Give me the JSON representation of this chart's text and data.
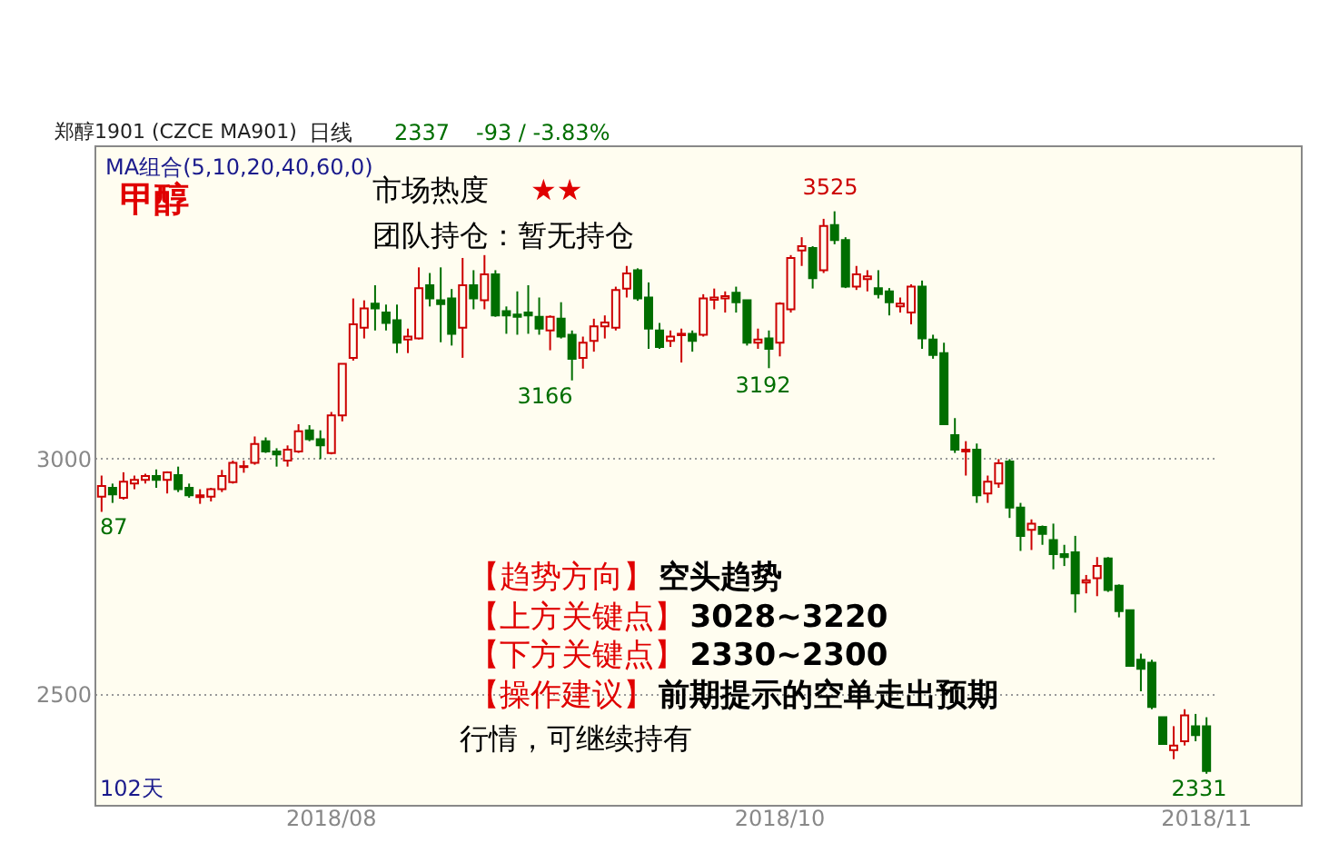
{
  "chart_data": {
    "type": "candlestick",
    "title": "甲醇",
    "categories": [
      null,
      null,
      null,
      null,
      null,
      null,
      null,
      null,
      null,
      null,
      null,
      null,
      null,
      null,
      null,
      null,
      null,
      null,
      null,
      null,
      null,
      "2018/08",
      null,
      null,
      null,
      null,
      null,
      null,
      null,
      null,
      null,
      null,
      null,
      null,
      null,
      null,
      null,
      null,
      null,
      null,
      null,
      null,
      null,
      null,
      null,
      null,
      null,
      null,
      null,
      null,
      null,
      null,
      null,
      null,
      null,
      null,
      null,
      null,
      null,
      null,
      null,
      null,
      "2018/10",
      null,
      null,
      null,
      null,
      null,
      null,
      null,
      null,
      null,
      null,
      null,
      null,
      null,
      null,
      null,
      null,
      null,
      null,
      null,
      null,
      null,
      null,
      null,
      null,
      null,
      null,
      null,
      null,
      null,
      null,
      null,
      null,
      null,
      null,
      null,
      null,
      null,
      null,
      "2018/11"
    ],
    "ohlc": [
      [
        2919,
        2964,
        2887,
        2942
      ],
      [
        2938,
        2947,
        2906,
        2924
      ],
      [
        2917,
        2971,
        2913,
        2951
      ],
      [
        2947,
        2964,
        2935,
        2955
      ],
      [
        2955,
        2968,
        2947,
        2963
      ],
      [
        2963,
        2977,
        2938,
        2955
      ],
      [
        2955,
        2973,
        2926,
        2971
      ],
      [
        2965,
        2983,
        2929,
        2935
      ],
      [
        2938,
        2947,
        2917,
        2922
      ],
      [
        2918,
        2935,
        2904,
        2922
      ],
      [
        2919,
        2938,
        2909,
        2935
      ],
      [
        2935,
        2976,
        2929,
        2963
      ],
      [
        2950,
        2996,
        2947,
        2991
      ],
      [
        2982,
        2996,
        2970,
        2984
      ],
      [
        2991,
        3047,
        2987,
        3031
      ],
      [
        3037,
        3045,
        3012,
        3015
      ],
      [
        3015,
        3022,
        2983,
        3009
      ],
      [
        2996,
        3028,
        2983,
        3019
      ],
      [
        3015,
        3073,
        3012,
        3058
      ],
      [
        3060,
        3071,
        3037,
        3041
      ],
      [
        3041,
        3060,
        2999,
        3028
      ],
      [
        3012,
        3099,
        3009,
        3092
      ],
      [
        3092,
        3201,
        3079,
        3201
      ],
      [
        3214,
        3340,
        3208,
        3285
      ],
      [
        3278,
        3336,
        3255,
        3319
      ],
      [
        3329,
        3368,
        3272,
        3319
      ],
      [
        3310,
        3327,
        3272,
        3288
      ],
      [
        3294,
        3327,
        3224,
        3246
      ],
      [
        3253,
        3276,
        3224,
        3259
      ],
      [
        3255,
        3406,
        3253,
        3362
      ],
      [
        3368,
        3394,
        3323,
        3340
      ],
      [
        3336,
        3406,
        3247,
        3328
      ],
      [
        3340,
        3360,
        3240,
        3265
      ],
      [
        3278,
        3426,
        3214,
        3368
      ],
      [
        3368,
        3400,
        3317,
        3340
      ],
      [
        3336,
        3432,
        3317,
        3391
      ],
      [
        3391,
        3400,
        3301,
        3304
      ],
      [
        3313,
        3323,
        3265,
        3304
      ],
      [
        3306,
        3355,
        3263,
        3301
      ],
      [
        3310,
        3368,
        3265,
        3304
      ],
      [
        3301,
        3342,
        3263,
        3276
      ],
      [
        3272,
        3304,
        3230,
        3301
      ],
      [
        3297,
        3332,
        3255,
        3259
      ],
      [
        3263,
        3272,
        3166,
        3212
      ],
      [
        3214,
        3259,
        3191,
        3246
      ],
      [
        3250,
        3297,
        3227,
        3281
      ],
      [
        3281,
        3304,
        3255,
        3289
      ],
      [
        3278,
        3365,
        3272,
        3358
      ],
      [
        3361,
        3409,
        3342,
        3393
      ],
      [
        3400,
        3404,
        3335,
        3340
      ],
      [
        3342,
        3374,
        3233,
        3276
      ],
      [
        3272,
        3288,
        3233,
        3237
      ],
      [
        3250,
        3272,
        3237,
        3259
      ],
      [
        3262,
        3276,
        3204,
        3265
      ],
      [
        3265,
        3272,
        3227,
        3250
      ],
      [
        3263,
        3349,
        3259,
        3340
      ],
      [
        3337,
        3361,
        3317,
        3342
      ],
      [
        3340,
        3355,
        3310,
        3345
      ],
      [
        3352,
        3365,
        3310,
        3332
      ],
      [
        3336,
        3336,
        3240,
        3246
      ],
      [
        3246,
        3276,
        3233,
        3253
      ],
      [
        3255,
        3272,
        3192,
        3233
      ],
      [
        3246,
        3332,
        3217,
        3329
      ],
      [
        3317,
        3432,
        3310,
        3426
      ],
      [
        3442,
        3470,
        3409,
        3451
      ],
      [
        3447,
        3451,
        3361,
        3383
      ],
      [
        3400,
        3509,
        3394,
        3494
      ],
      [
        3496,
        3525,
        3455,
        3464
      ],
      [
        3464,
        3470,
        3362,
        3365
      ],
      [
        3365,
        3409,
        3358,
        3391
      ],
      [
        3381,
        3400,
        3355,
        3387
      ],
      [
        3362,
        3400,
        3340,
        3349
      ],
      [
        3355,
        3362,
        3304,
        3332
      ],
      [
        3323,
        3342,
        3310,
        3329
      ],
      [
        3310,
        3370,
        3285,
        3365
      ],
      [
        3365,
        3378,
        3233,
        3255
      ],
      [
        3253,
        3263,
        3212,
        3220
      ],
      [
        3224,
        3246,
        3073,
        3073
      ],
      [
        3050,
        3086,
        3012,
        3019
      ],
      [
        3015,
        3037,
        2964,
        3019
      ],
      [
        3019,
        3032,
        2906,
        2922
      ],
      [
        2926,
        2964,
        2906,
        2951
      ],
      [
        2947,
        2999,
        2938,
        2990
      ],
      [
        2994,
        2999,
        2874,
        2896
      ],
      [
        2896,
        2906,
        2804,
        2836
      ],
      [
        2849,
        2871,
        2806,
        2862
      ],
      [
        2855,
        2858,
        2817,
        2840
      ],
      [
        2827,
        2862,
        2765,
        2797
      ],
      [
        2797,
        2817,
        2772,
        2791
      ],
      [
        2801,
        2836,
        2673,
        2714
      ],
      [
        2737,
        2753,
        2714,
        2742
      ],
      [
        2746,
        2791,
        2708,
        2772
      ],
      [
        2788,
        2791,
        2717,
        2721
      ],
      [
        2730,
        2733,
        2663,
        2676
      ],
      [
        2678,
        2678,
        2558,
        2560
      ],
      [
        2573,
        2586,
        2506,
        2554
      ],
      [
        2567,
        2573,
        2468,
        2473
      ],
      [
        2451,
        2451,
        2394,
        2394
      ],
      [
        2381,
        2432,
        2362,
        2391
      ],
      [
        2400,
        2468,
        2391,
        2455
      ],
      [
        2432,
        2458,
        2400,
        2413
      ],
      [
        2432,
        2451,
        2331,
        2337
      ]
    ],
    "ylim": [
      2265,
      3665
    ],
    "yticks": [
      2500,
      3000
    ],
    "grid": "y",
    "legend": false,
    "annotations": [
      "郑醇1901 (CZCE MA901)",
      "日线",
      "2337",
      "-93 / -3.83%",
      "MA组合(5,10,20,40,60,0)",
      "市场热度",
      "★★",
      "团队持仓：暂无持仓",
      "【趋势方向】空头趋势",
      "【上方关键点】3028~3220",
      "【下方关键点】2330~2300",
      "【操作建议】前期提示的空单走出预期",
      "行情，可继续持有",
      "102天",
      "87",
      "3166",
      "3192",
      "3525",
      "2331"
    ]
  }
}
